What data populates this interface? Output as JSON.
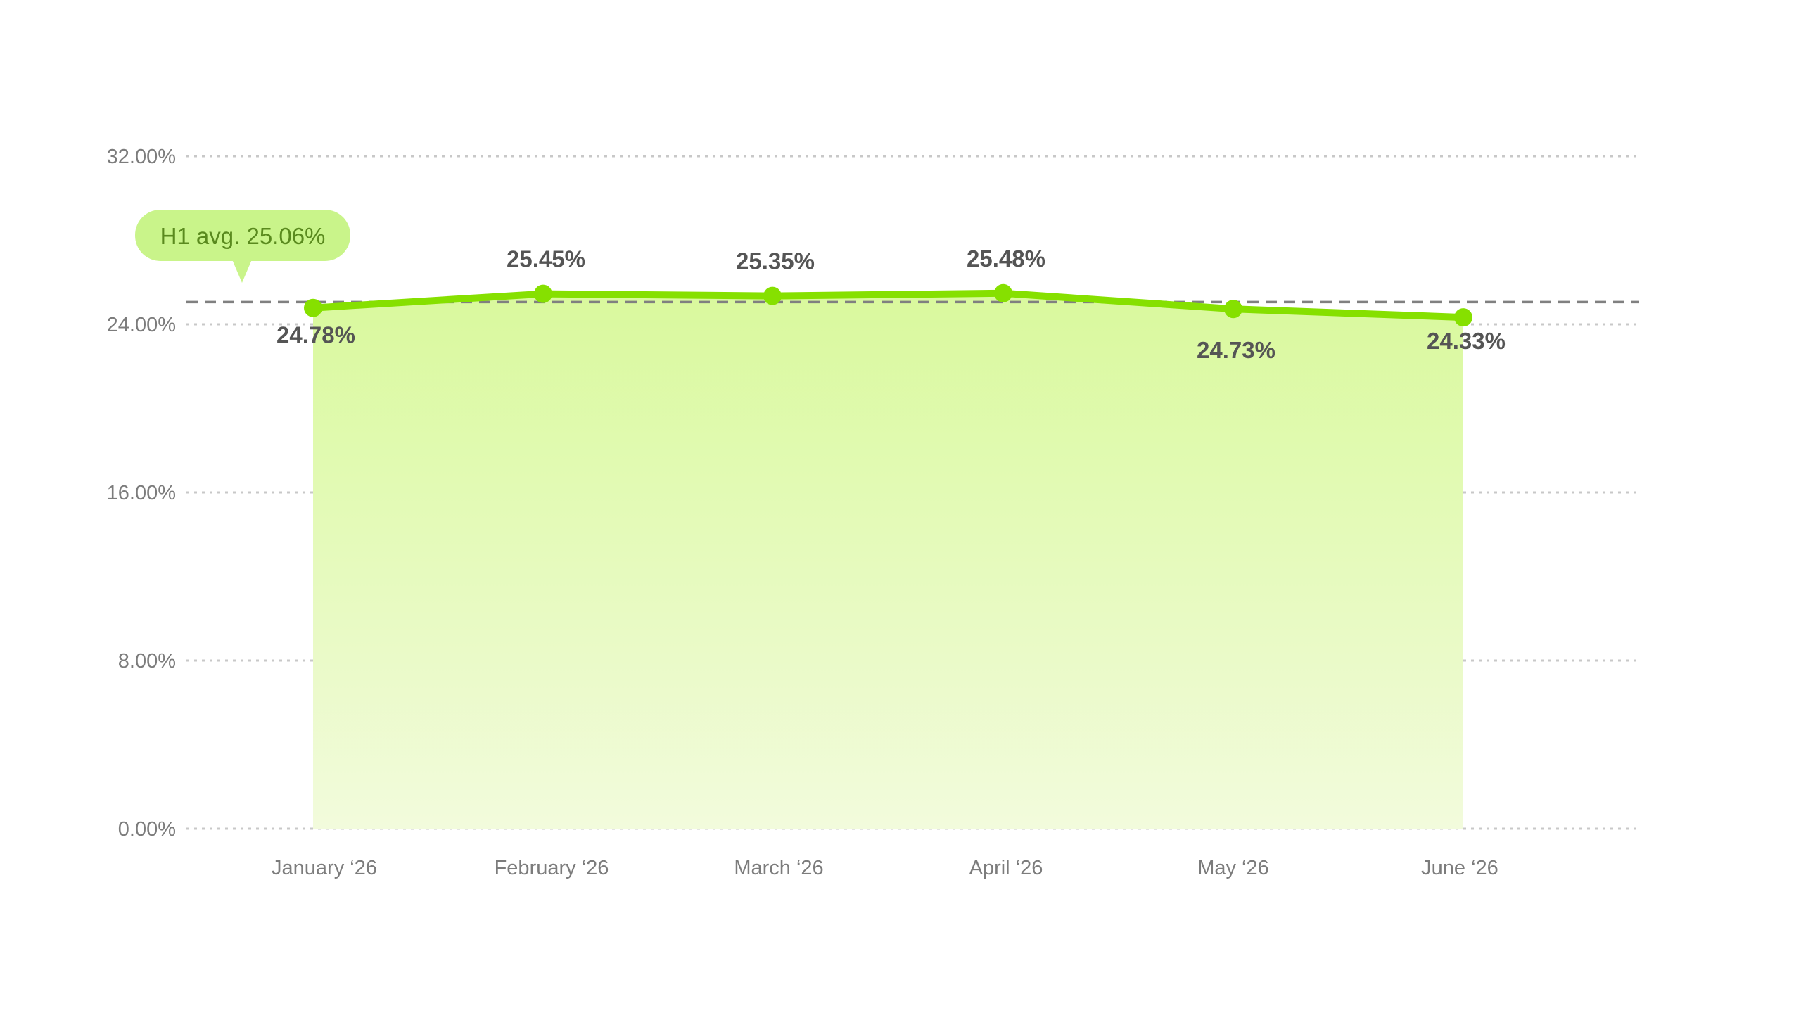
{
  "chart_data": {
    "type": "area",
    "categories": [
      "January ‘26",
      "February ‘26",
      "March ‘26",
      "April ‘26",
      "May ‘26",
      "June ‘26"
    ],
    "series": [
      {
        "values": [
          24.78,
          25.45,
          25.35,
          25.48,
          24.73,
          24.33
        ],
        "data_labels": [
          "24.78%",
          "25.45%",
          "25.35%",
          "25.48%",
          "24.73%",
          "24.33%"
        ]
      }
    ],
    "average": {
      "value": 25.06,
      "label": "H1 avg. 25.06%"
    },
    "y_ticks": [
      0,
      8,
      16,
      24,
      32
    ],
    "y_tick_labels": [
      "0.00%",
      "8.00%",
      "16.00%",
      "24.00%",
      "32.00%"
    ],
    "ylim": [
      0,
      32
    ],
    "grid": true,
    "legend": "none",
    "colors": {
      "line": "#86e000",
      "area_top": "#d9f99d",
      "area_bottom": "#f2fbdc",
      "grid": "#c8c8c8",
      "avg_line": "#808080",
      "avg_badge": "#c9f48a",
      "avg_text": "#5a8a1e",
      "label": "#555555",
      "tick": "#7c7c7c"
    }
  }
}
